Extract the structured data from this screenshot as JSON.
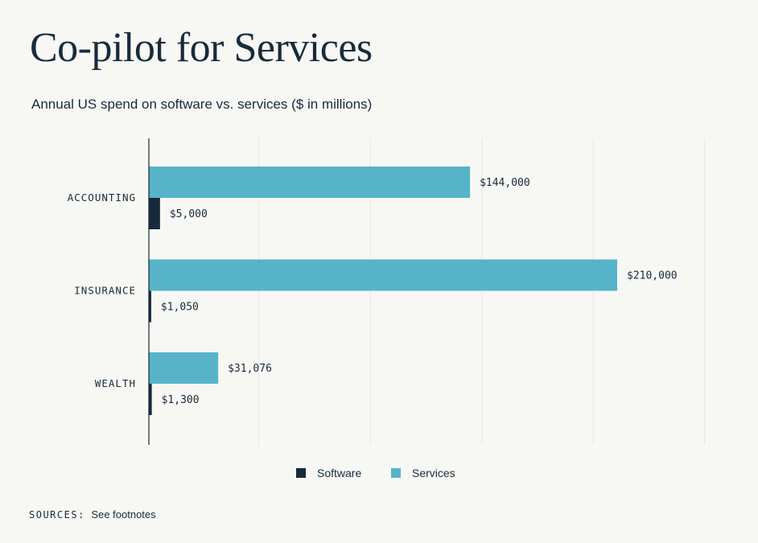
{
  "title": "Co-pilot for Services",
  "subtitle": "Annual US spend on software vs. services ($ in millions)",
  "colors": {
    "software": "#17293a",
    "services": "#57b4c8",
    "grid": "#e6e6e2",
    "axis": "#17293a"
  },
  "legend": {
    "software": "Software",
    "services": "Services"
  },
  "sources": {
    "key": "SOURCES:",
    "text": "See footnotes"
  },
  "chart_data": {
    "type": "bar",
    "orientation": "horizontal",
    "categories": [
      "ACCOUNTING",
      "INSURANCE",
      "WEALTH"
    ],
    "series": [
      {
        "name": "Services",
        "values": [
          144000,
          210000,
          31076
        ],
        "labels": [
          "$144,000",
          "$210,000",
          "$31,076"
        ]
      },
      {
        "name": "Software",
        "values": [
          5000,
          1050,
          1300
        ],
        "labels": [
          "$5,000",
          "$1,050",
          "$1,300"
        ]
      }
    ],
    "xlim": [
      0,
      250000
    ],
    "grid": true,
    "legend_position": "bottom"
  }
}
